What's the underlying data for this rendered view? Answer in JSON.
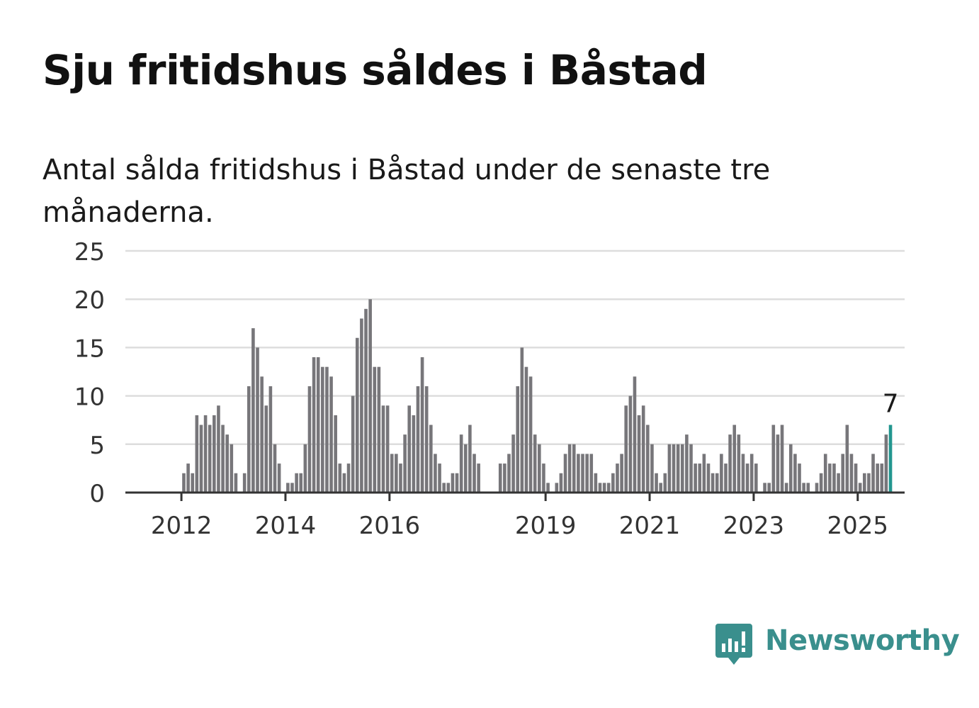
{
  "header": {
    "title": "Sju fritidshus såldes i Båstad",
    "subtitle": "Antal sålda fritidshus i Båstad under de senaste tre månaderna."
  },
  "brand": {
    "name": "Newsworthy",
    "icon": "newsworthy-logo-icon",
    "color": "#3a8f8d"
  },
  "colors": {
    "bar": "#77767a",
    "highlight": "#22968f",
    "grid": "#dddddd",
    "axis": "#333333"
  },
  "chart_data": {
    "type": "bar",
    "title": "Sju fritidshus såldes i Båstad",
    "subtitle": "Antal sålda fritidshus i Båstad under de senaste tre månaderna.",
    "xlabel": "",
    "ylabel": "",
    "ylim": [
      0,
      25
    ],
    "yticks": [
      0,
      5,
      10,
      15,
      20,
      25
    ],
    "grid": true,
    "legend": "none",
    "x_start": "2011-04",
    "x_tick_labels": [
      "2012",
      "2014",
      "2016",
      "2019",
      "2021",
      "2023",
      "2025"
    ],
    "x_tick_months": [
      "2012-01",
      "2014-01",
      "2016-01",
      "2019-01",
      "2021-01",
      "2023-01",
      "2025-01"
    ],
    "highlight_label": "7",
    "values": [
      0,
      0,
      0,
      0,
      0,
      0,
      0,
      0,
      0,
      2,
      3,
      2,
      8,
      7,
      8,
      7,
      8,
      9,
      7,
      6,
      5,
      2,
      0,
      2,
      11,
      17,
      15,
      12,
      9,
      11,
      5,
      3,
      0,
      1,
      1,
      2,
      2,
      5,
      11,
      14,
      14,
      13,
      13,
      12,
      8,
      3,
      2,
      3,
      10,
      16,
      18,
      19,
      20,
      13,
      13,
      9,
      9,
      4,
      4,
      3,
      6,
      9,
      8,
      11,
      14,
      11,
      7,
      4,
      3,
      1,
      1,
      2,
      2,
      6,
      5,
      7,
      4,
      3,
      0,
      0,
      0,
      0,
      3,
      3,
      4,
      6,
      11,
      15,
      13,
      12,
      6,
      5,
      3,
      1,
      0,
      1,
      2,
      4,
      5,
      5,
      4,
      4,
      4,
      4,
      2,
      1,
      1,
      1,
      2,
      3,
      4,
      9,
      10,
      12,
      8,
      9,
      7,
      5,
      2,
      1,
      2,
      5,
      5,
      5,
      5,
      6,
      5,
      3,
      3,
      4,
      3,
      2,
      2,
      4,
      3,
      6,
      7,
      6,
      4,
      3,
      4,
      3,
      0,
      1,
      1,
      7,
      6,
      7,
      1,
      5,
      4,
      3,
      1,
      1,
      0,
      1,
      2,
      4,
      3,
      3,
      2,
      4,
      7,
      4,
      3,
      1,
      2,
      2,
      4,
      3,
      3,
      6,
      7
    ]
  }
}
